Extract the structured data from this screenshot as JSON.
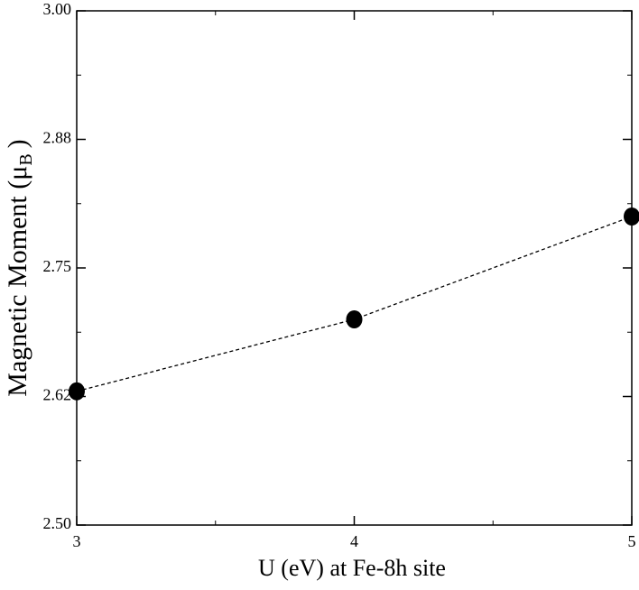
{
  "chart_data": {
    "type": "line",
    "xlabel": "U (eV) at Fe-8h site",
    "ylabel": "Magnetic Moment (μ",
    "ylabel_sub": "B",
    "ylabel_end": ")",
    "x": [
      3,
      4,
      5
    ],
    "series": [
      {
        "color": "#000000",
        "values": [
          2.63,
          2.7,
          2.8
        ]
      }
    ],
    "xlim": [
      3,
      5
    ],
    "xticks": [
      3,
      4,
      5
    ],
    "ylim": [
      2.5,
      3.0
    ],
    "yticks": [
      {
        "value": 2.5,
        "label": "2.50"
      },
      {
        "value": 2.625,
        "label": "2.62"
      },
      {
        "value": 2.75,
        "label": "2.75"
      },
      {
        "value": 2.875,
        "label": "2.88"
      },
      {
        "value": 3.0,
        "label": "3.00"
      }
    ]
  }
}
